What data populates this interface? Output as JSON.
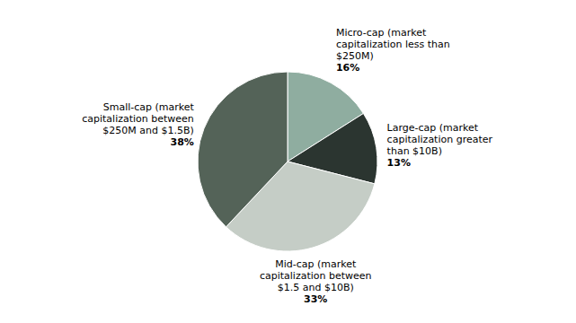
{
  "chart_data": {
    "type": "pie",
    "categories": [
      "Micro-cap (market\ncapitalization less than\n$250M)",
      "Large-cap (market\ncapitalization greater\nthan $10B)",
      "Mid-cap (market\ncapitalization between\n$1.5 and $10B)",
      "Small-cap (market\ncapitalization between\n$250M and $1.5B)"
    ],
    "values": [
      16,
      13,
      33,
      38
    ],
    "value_labels": [
      "16%",
      "13%",
      "33%",
      "38%"
    ],
    "data_labels": true,
    "colors": [
      "#8fada0",
      "#2b3530",
      "#c5cdc6",
      "#546358"
    ]
  }
}
